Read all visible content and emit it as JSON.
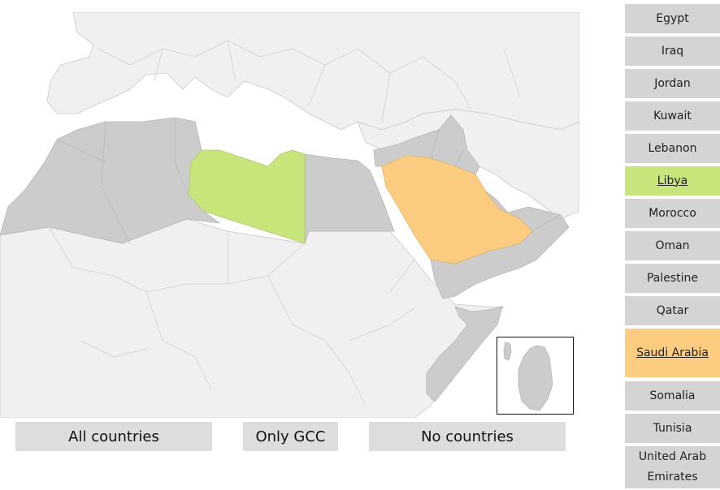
{
  "colors": {
    "selected_green": "#c8e57c",
    "selected_orange": "#fccd80",
    "arab_land": "#cccccc",
    "other_land": "#f0f0f0",
    "button_bg": "#dddddd",
    "list_bg": "#d4d4d4"
  },
  "map": {
    "highlighted": [
      {
        "country": "Libya",
        "color": "#c8e57c"
      },
      {
        "country": "Saudi Arabia",
        "color": "#fccd80"
      }
    ]
  },
  "buttons": {
    "all": "All countries",
    "gcc": "Only GCC",
    "none": "No countries"
  },
  "countries": [
    {
      "name": "Egypt",
      "selected": false
    },
    {
      "name": "Iraq",
      "selected": false
    },
    {
      "name": "Jordan",
      "selected": false
    },
    {
      "name": "Kuwait",
      "selected": false
    },
    {
      "name": "Lebanon",
      "selected": false
    },
    {
      "name": "Libya",
      "selected": true,
      "color": "#c8e57c"
    },
    {
      "name": "Morocco",
      "selected": false
    },
    {
      "name": "Oman",
      "selected": false
    },
    {
      "name": "Palestine",
      "selected": false
    },
    {
      "name": "Qatar",
      "selected": false
    },
    {
      "name": "Saudi Arabia",
      "selected": true,
      "color": "#fccd80"
    },
    {
      "name": "Somalia",
      "selected": false
    },
    {
      "name": "Tunisia",
      "selected": false
    },
    {
      "name": "United Arab Emirates",
      "selected": false
    }
  ]
}
